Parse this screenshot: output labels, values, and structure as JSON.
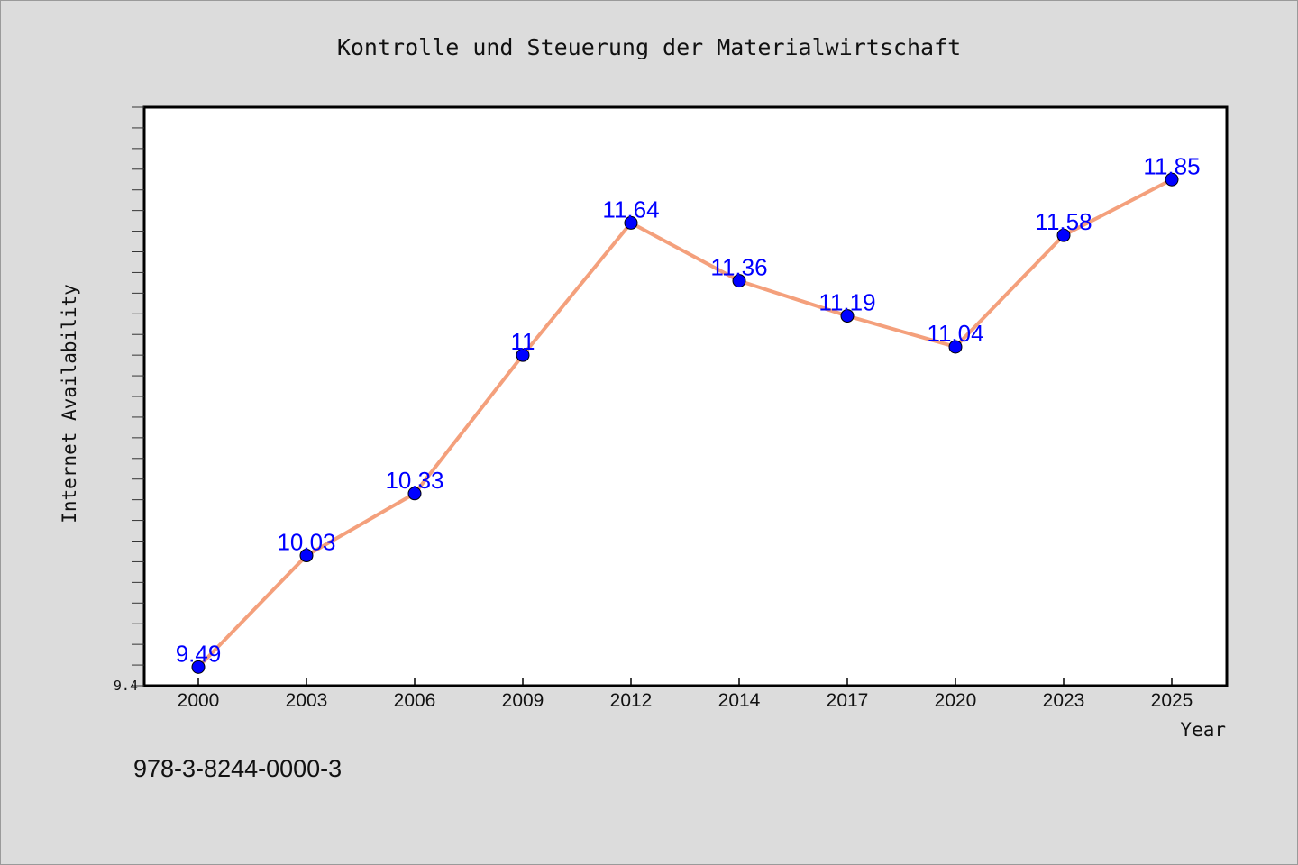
{
  "chart_data": {
    "type": "line",
    "title": "Kontrolle und Steuerung der Materialwirtschaft",
    "xlabel": "Year",
    "ylabel": "Internet Availability",
    "categories": [
      "2000",
      "2003",
      "2006",
      "2009",
      "2012",
      "2014",
      "2017",
      "2020",
      "2023",
      "2025"
    ],
    "series": [
      {
        "values": [
          9.49,
          10.03,
          10.33,
          11,
          11.64,
          11.36,
          11.19,
          11.04,
          11.58,
          11.85
        ],
        "labels": [
          "9.49",
          "10.03",
          "10.33",
          "11",
          "11.64",
          "11.36",
          "11.19",
          "11.04",
          "11.58",
          "11.85"
        ]
      }
    ],
    "ylim": [
      9.4,
      12.2
    ],
    "yticks": [
      "9.4"
    ],
    "grid": false,
    "legend": "none"
  },
  "footer": {
    "isbn": "978-3-8244-0000-3"
  },
  "colors": {
    "background": "#dcdcdc",
    "plot_background": "#ffffff",
    "line": "#f4a07c",
    "marker": "#0000ff",
    "data_label": "#0000ff"
  }
}
